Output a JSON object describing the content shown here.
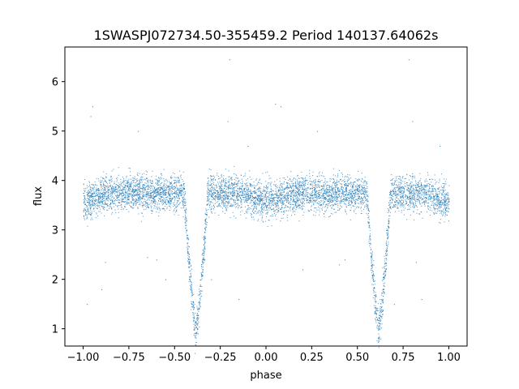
{
  "chart_data": {
    "type": "scatter",
    "title": "1SWASPJ072734.50-355459.2 Period 140137.64062s",
    "xlabel": "phase",
    "ylabel": "flux",
    "xlim": [
      -1.1,
      1.1
    ],
    "ylim": [
      0.65,
      6.7
    ],
    "x_ticks": [
      -1.0,
      -0.75,
      -0.5,
      -0.25,
      0.0,
      0.25,
      0.5,
      0.75,
      1.0
    ],
    "x_tick_labels": [
      "−1.00",
      "−0.75",
      "−0.50",
      "−0.25",
      "0.00",
      "0.25",
      "0.50",
      "0.75",
      "1.00"
    ],
    "y_ticks": [
      1,
      2,
      3,
      4,
      5,
      6
    ],
    "y_tick_labels": [
      "1",
      "2",
      "3",
      "4",
      "5",
      "6"
    ],
    "grid": false,
    "series": [
      {
        "color": "#1f77b4",
        "baseline_flux": 3.75,
        "primary_eclipse": {
          "phase": [
            -0.385,
            0.615
          ],
          "min_flux": 1.0,
          "half_width": 0.065
        },
        "secondary_eclipse": {
          "phase": [
            0.0,
            1.0
          ],
          "depth": 0.15,
          "half_width": 0.12
        },
        "outliers": [
          [
            -0.95,
            5.5
          ],
          [
            -0.96,
            5.3
          ],
          [
            -0.2,
            6.45
          ],
          [
            0.78,
            6.45
          ],
          [
            -0.21,
            5.2
          ],
          [
            0.05,
            5.55
          ],
          [
            0.28,
            5.0
          ],
          [
            0.8,
            5.2
          ],
          [
            -0.7,
            5.0
          ],
          [
            0.08,
            5.5
          ],
          [
            -0.88,
            2.35
          ],
          [
            -0.6,
            2.4
          ],
          [
            0.43,
            2.4
          ],
          [
            -0.15,
            1.6
          ],
          [
            0.85,
            1.6
          ],
          [
            -0.98,
            1.5
          ],
          [
            -0.9,
            1.8
          ],
          [
            0.4,
            2.3
          ],
          [
            -0.65,
            2.45
          ],
          [
            0.82,
            2.35
          ],
          [
            -0.55,
            2.0
          ],
          [
            0.7,
            1.5
          ],
          [
            0.2,
            2.2
          ],
          [
            -0.3,
            2.0
          ],
          [
            0.95,
            4.7
          ],
          [
            -0.1,
            4.7
          ]
        ]
      }
    ]
  }
}
